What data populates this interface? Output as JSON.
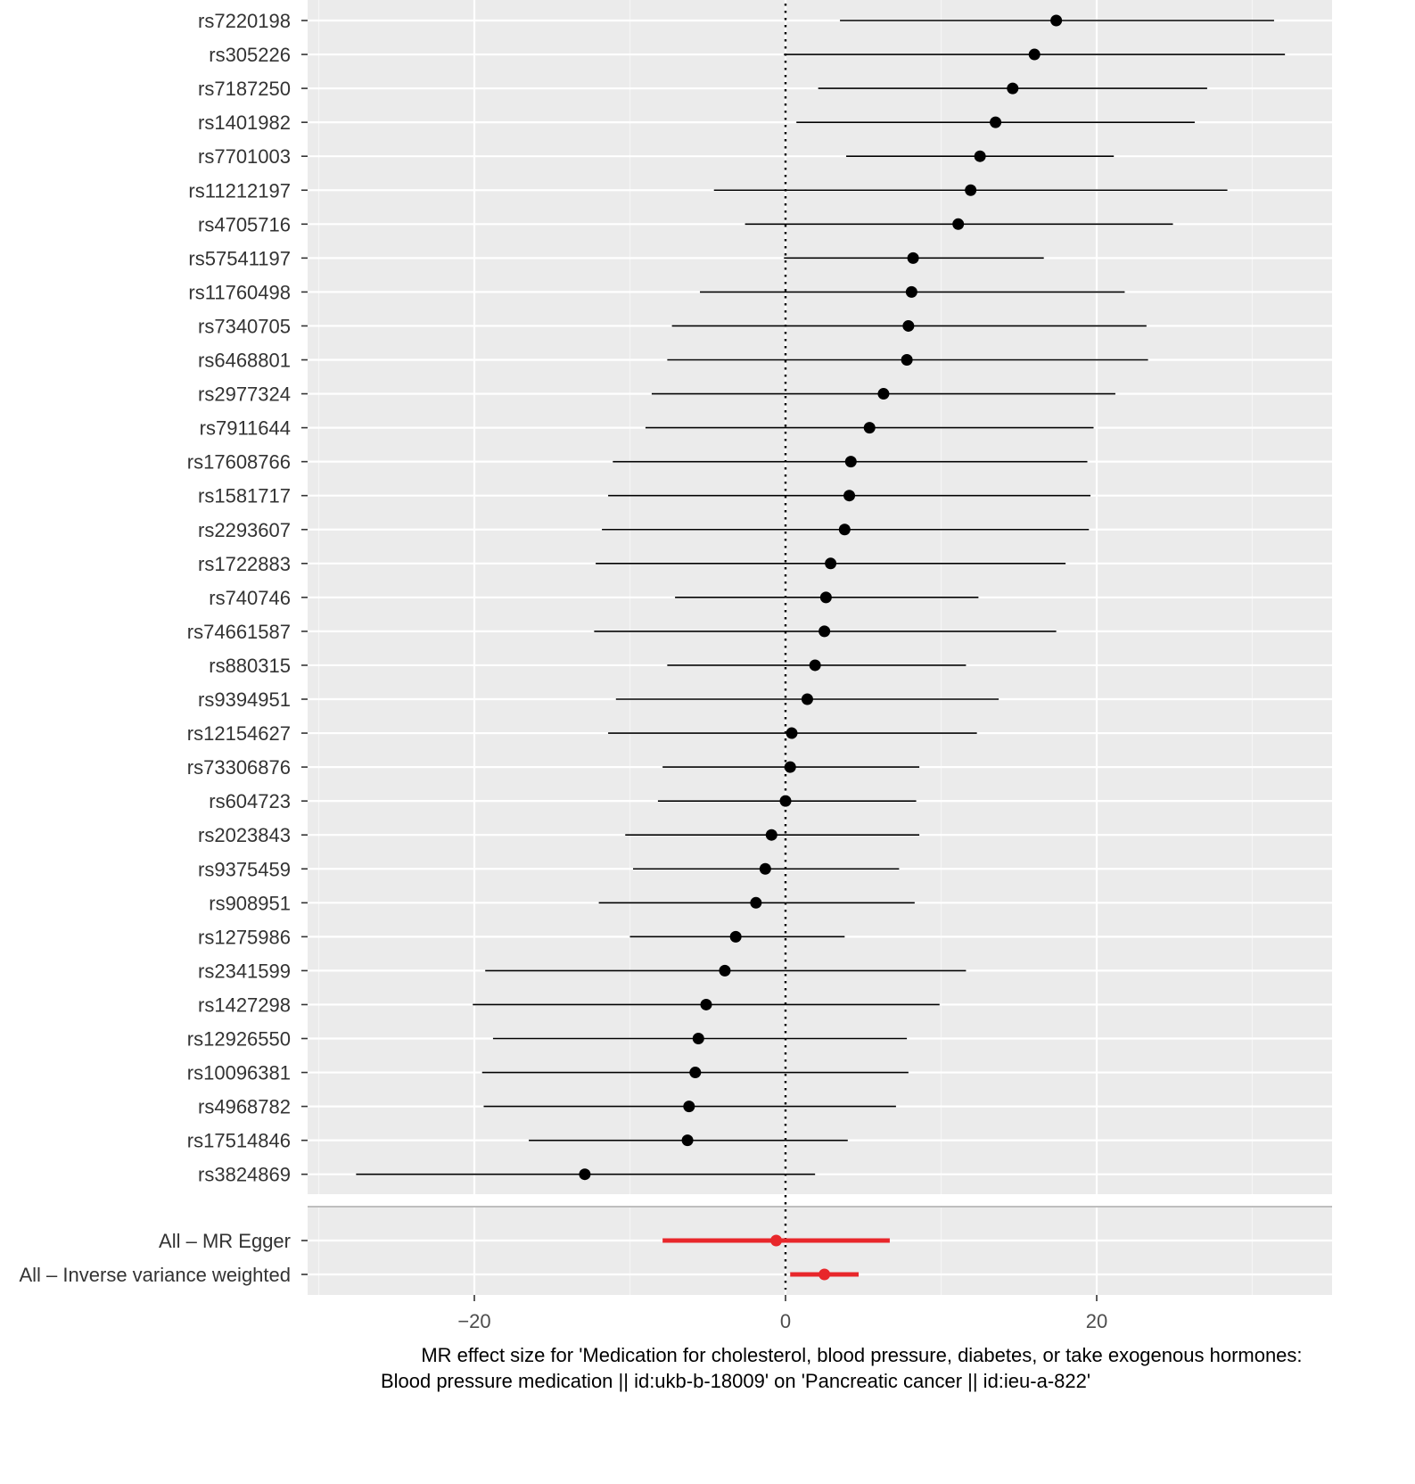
{
  "chart_data": {
    "type": "forest",
    "xlabel_lines": [
      "MR effect size for 'Medication for cholesterol, blood pressure, diabetes, or take exogenous hormones:",
      "Blood pressure medication || id:ukb-b-18009' on 'Pancreatic cancer || id:ieu-a-822'"
    ],
    "xlim": [
      -30,
      35
    ],
    "xticks": [
      -20,
      0,
      20
    ],
    "xtick_labels": [
      "−20",
      "0",
      "20"
    ],
    "reference_line": 0,
    "grid": true,
    "snps": [
      {
        "label": "rs7220198",
        "b": 17.4,
        "lo": 3.5,
        "hi": 31.4
      },
      {
        "label": "rs305226",
        "b": 16.0,
        "lo": -0.1,
        "hi": 32.1
      },
      {
        "label": "rs7187250",
        "b": 14.6,
        "lo": 2.1,
        "hi": 27.1
      },
      {
        "label": "rs1401982",
        "b": 13.5,
        "lo": 0.7,
        "hi": 26.3
      },
      {
        "label": "rs7701003",
        "b": 12.5,
        "lo": 3.9,
        "hi": 21.1
      },
      {
        "label": "rs11212197",
        "b": 11.9,
        "lo": -4.6,
        "hi": 28.4
      },
      {
        "label": "rs4705716",
        "b": 11.1,
        "lo": -2.6,
        "hi": 24.9
      },
      {
        "label": "rs57541197",
        "b": 8.2,
        "lo": -0.1,
        "hi": 16.6
      },
      {
        "label": "rs11760498",
        "b": 8.1,
        "lo": -5.5,
        "hi": 21.8
      },
      {
        "label": "rs7340705",
        "b": 7.9,
        "lo": -7.3,
        "hi": 23.2
      },
      {
        "label": "rs6468801",
        "b": 7.8,
        "lo": -7.6,
        "hi": 23.3
      },
      {
        "label": "rs2977324",
        "b": 6.3,
        "lo": -8.6,
        "hi": 21.2
      },
      {
        "label": "rs7911644",
        "b": 5.4,
        "lo": -9.0,
        "hi": 19.8
      },
      {
        "label": "rs17608766",
        "b": 4.2,
        "lo": -11.1,
        "hi": 19.4
      },
      {
        "label": "rs1581717",
        "b": 4.1,
        "lo": -11.4,
        "hi": 19.6
      },
      {
        "label": "rs2293607",
        "b": 3.8,
        "lo": -11.8,
        "hi": 19.5
      },
      {
        "label": "rs1722883",
        "b": 2.9,
        "lo": -12.2,
        "hi": 18.0
      },
      {
        "label": "rs740746",
        "b": 2.6,
        "lo": -7.1,
        "hi": 12.4
      },
      {
        "label": "rs74661587",
        "b": 2.5,
        "lo": -12.3,
        "hi": 17.4
      },
      {
        "label": "rs880315",
        "b": 1.9,
        "lo": -7.6,
        "hi": 11.6
      },
      {
        "label": "rs9394951",
        "b": 1.4,
        "lo": -10.9,
        "hi": 13.7
      },
      {
        "label": "rs12154627",
        "b": 0.4,
        "lo": -11.4,
        "hi": 12.3
      },
      {
        "label": "rs73306876",
        "b": 0.3,
        "lo": -7.9,
        "hi": 8.6
      },
      {
        "label": "rs604723",
        "b": 0.0,
        "lo": -8.2,
        "hi": 8.4
      },
      {
        "label": "rs2023843",
        "b": -0.9,
        "lo": -10.3,
        "hi": 8.6
      },
      {
        "label": "rs9375459",
        "b": -1.3,
        "lo": -9.8,
        "hi": 7.3
      },
      {
        "label": "rs908951",
        "b": -1.9,
        "lo": -12.0,
        "hi": 8.3
      },
      {
        "label": "rs1275986",
        "b": -3.2,
        "lo": -10.0,
        "hi": 3.8
      },
      {
        "label": "rs2341599",
        "b": -3.9,
        "lo": -19.3,
        "hi": 11.6
      },
      {
        "label": "rs1427298",
        "b": -5.1,
        "lo": -20.1,
        "hi": 9.9
      },
      {
        "label": "rs12926550",
        "b": -5.6,
        "lo": -18.8,
        "hi": 7.8
      },
      {
        "label": "rs10096381",
        "b": -5.8,
        "lo": -19.5,
        "hi": 7.9
      },
      {
        "label": "rs4968782",
        "b": -6.2,
        "lo": -19.4,
        "hi": 7.1
      },
      {
        "label": "rs17514846",
        "b": -6.3,
        "lo": -16.5,
        "hi": 4.0
      },
      {
        "label": "rs3824869",
        "b": -12.9,
        "lo": -27.6,
        "hi": 1.9
      }
    ],
    "summary": [
      {
        "label": "All – MR Egger",
        "b": -0.6,
        "lo": -7.9,
        "hi": 6.7
      },
      {
        "label": "All – Inverse variance weighted",
        "b": 2.5,
        "lo": 0.3,
        "hi": 4.7
      }
    ],
    "colors": {
      "panel": "#ebebeb",
      "grid_major": "#ffffff",
      "grid_minor": "#f5f5f5",
      "snp": "#000000",
      "summary": "#e8272b",
      "separator": "#bebebe"
    }
  }
}
